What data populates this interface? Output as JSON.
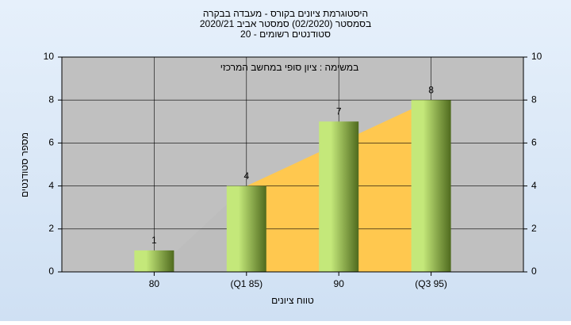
{
  "chart_data": {
    "type": "bar",
    "title": [
      "היסטוגרמת ציונים בקורס - מעבדה בבקרה",
      "בסמסטר  (02/2020)  סמסטר אביב 2020/21",
      "סטודנטים רשומים - 20"
    ],
    "annotation": "במשימה : ציון סופי במחשב המרכזי",
    "x_label": "טווח ציונים",
    "y_label": "מספר סטודנטים",
    "categories": [
      "80",
      "(Q1 85)",
      "90",
      "(Q3 95)"
    ],
    "values": [
      1,
      4,
      7,
      8
    ],
    "ylim": [
      0,
      10
    ],
    "yticks": [
      0,
      2,
      4,
      6,
      8,
      10
    ],
    "grid": true,
    "color": [
      "#c4e87a",
      "#4f6a1e"
    ]
  }
}
